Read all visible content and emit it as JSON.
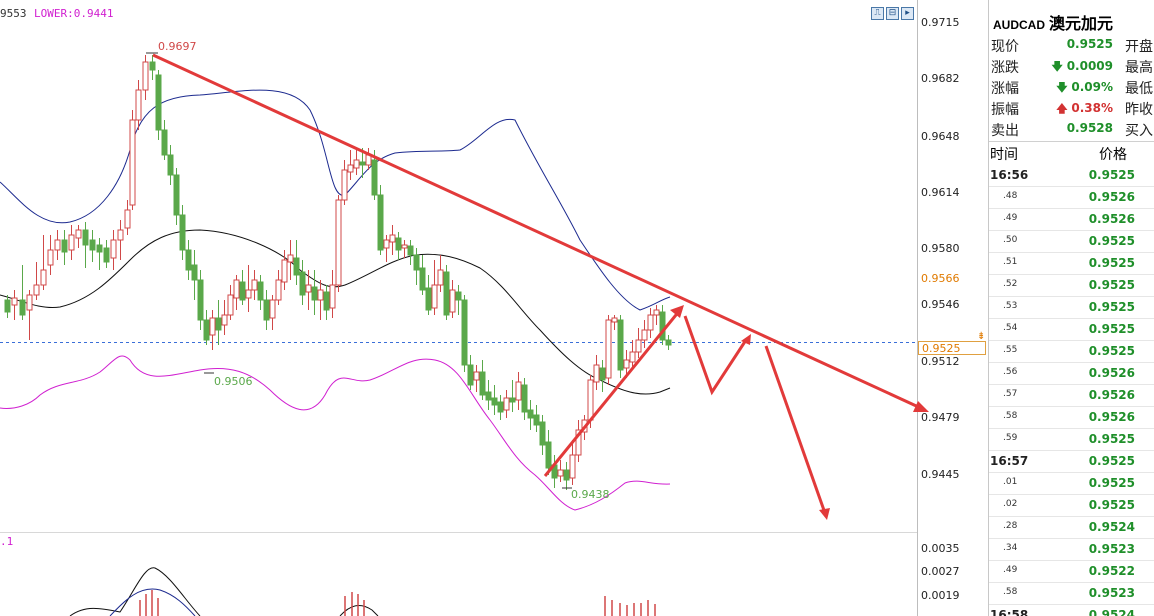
{
  "header": {
    "indicator_left": "9553",
    "indicator_lower": "LOWER:0.9441",
    "sub_indicator": ".1"
  },
  "toolbar": {
    "btn1": "⎍",
    "btn2": "⊟",
    "btn3": "▸",
    "btn4": "⊠"
  },
  "price_axis": {
    "labels": [
      "0.9715",
      "0.9682",
      "0.9648",
      "0.9614",
      "0.9580",
      "0.9546",
      "0.9512",
      "0.9479",
      "0.9445"
    ],
    "highlight_value": "0.9566",
    "current_value": "0.9525",
    "marker": "⇟"
  },
  "sub_axis": {
    "labels": [
      "0.0035",
      "0.0027",
      "0.0019"
    ]
  },
  "annotations": {
    "high": "0.9697",
    "low_left": "0.9506",
    "low_right": "0.9438"
  },
  "panel": {
    "symbol": "AUDCAD",
    "name_cn": "澳元加元",
    "quote": [
      {
        "k": "现价",
        "v": "0.9525",
        "arrow": "",
        "color": "#1f8f2a",
        "k2": "开盘"
      },
      {
        "k": "涨跌",
        "v": "0.0009",
        "arrow": "down",
        "color": "#1f8f2a",
        "k2": "最高"
      },
      {
        "k": "涨幅",
        "v": "0.09%",
        "arrow": "down",
        "color": "#1f8f2a",
        "k2": "最低"
      },
      {
        "k": "振幅",
        "v": "0.38%",
        "arrow": "up",
        "color": "#d23232",
        "k2": "昨收"
      },
      {
        "k": "卖出",
        "v": "0.9528",
        "arrow": "",
        "color": "#1f8f2a",
        "k2": "买入"
      }
    ],
    "trade_header": {
      "time": "时间",
      "price": "价格"
    },
    "trades": [
      {
        "time": "16:56",
        "full": true,
        "price": "0.9525"
      },
      {
        "time": ".48",
        "full": false,
        "price": "0.9526"
      },
      {
        "time": ".49",
        "full": false,
        "price": "0.9526"
      },
      {
        "time": ".50",
        "full": false,
        "price": "0.9525"
      },
      {
        "time": ".51",
        "full": false,
        "price": "0.9525"
      },
      {
        "time": ".52",
        "full": false,
        "price": "0.9525"
      },
      {
        "time": ".53",
        "full": false,
        "price": "0.9525"
      },
      {
        "time": ".54",
        "full": false,
        "price": "0.9525"
      },
      {
        "time": ".55",
        "full": false,
        "price": "0.9525"
      },
      {
        "time": ".56",
        "full": false,
        "price": "0.9526"
      },
      {
        "time": ".57",
        "full": false,
        "price": "0.9526"
      },
      {
        "time": ".58",
        "full": false,
        "price": "0.9526"
      },
      {
        "time": ".59",
        "full": false,
        "price": "0.9525"
      },
      {
        "time": "16:57",
        "full": true,
        "price": "0.9525"
      },
      {
        "time": ".01",
        "full": false,
        "price": "0.9525"
      },
      {
        "time": ".02",
        "full": false,
        "price": "0.9525"
      },
      {
        "time": ".28",
        "full": false,
        "price": "0.9524"
      },
      {
        "time": ".34",
        "full": false,
        "price": "0.9523"
      },
      {
        "time": ".49",
        "full": false,
        "price": "0.9522"
      },
      {
        "time": ".58",
        "full": false,
        "price": "0.9523"
      },
      {
        "time": "16:58",
        "full": true,
        "price": "0.9524"
      }
    ]
  },
  "colors": {
    "up_candle": "#d04848",
    "down_candle": "#5aa84a",
    "bb_upper": "#1c2a8f",
    "bb_mid": "#111111",
    "bb_lower": "#d020d0",
    "trend": "#e23a3a",
    "price_up": "#d23232",
    "price_down": "#1f8f2a"
  }
}
